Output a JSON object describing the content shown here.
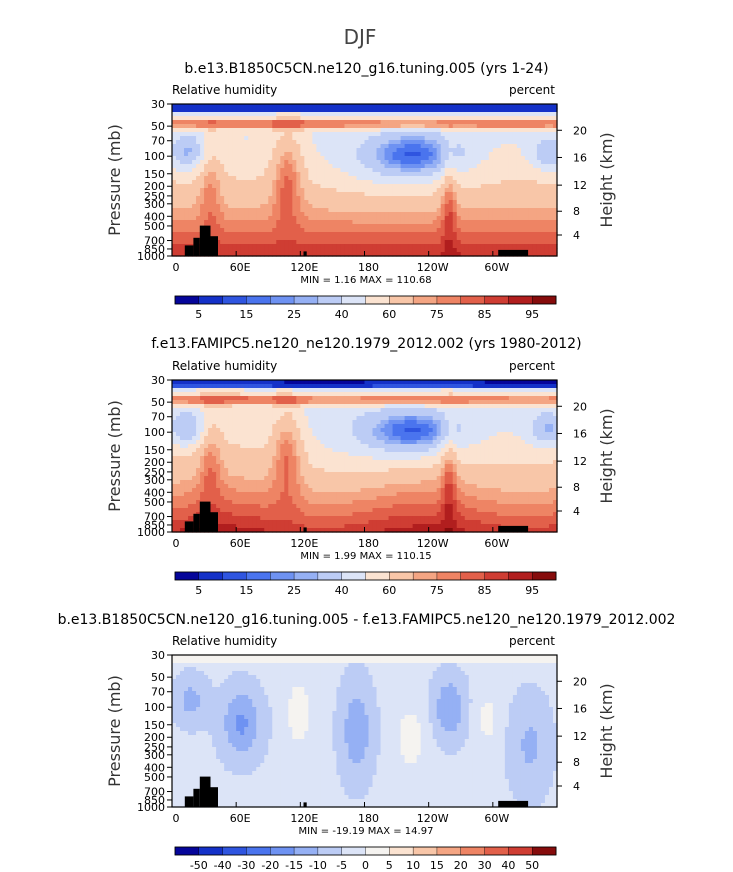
{
  "figure": {
    "supertitle": "DJF"
  },
  "chart_data": [
    {
      "type": "heatmap",
      "title": "b.e13.B1850C5CN.ne120_g16.tuning.005 (yrs 1-24)",
      "left_label": "Relative humidity",
      "right_label": "percent",
      "ylabel": "Pressure (mb)",
      "y2label": "Height (km)",
      "x_ticks": [
        "0",
        "60E",
        "120E",
        "180",
        "120W",
        "60W"
      ],
      "y_ticks": [
        "30",
        "50",
        "70",
        "100",
        "150",
        "200",
        "250",
        "300",
        "400",
        "500",
        "700",
        "850",
        "1000"
      ],
      "y2_ticks": [
        "20",
        "16",
        "12",
        "8",
        "4"
      ],
      "ylim": [
        1000,
        30
      ],
      "stats": {
        "min_label": "MIN =",
        "min": "1.16",
        "max_label": "MAX =",
        "max": "110.68"
      },
      "colorbar_labels": [
        "5",
        "15",
        "25",
        "40",
        "60",
        "75",
        "85",
        "95"
      ],
      "colorbar_colors": [
        "#05059a",
        "#1431c8",
        "#2f55e0",
        "#4a74ee",
        "#6e92f2",
        "#95b0f4",
        "#bcccf5",
        "#dce4f7",
        "#fbe3d1",
        "#f8c6a8",
        "#f4a583",
        "#ee8464",
        "#e2604a",
        "#cf3d33",
        "#b11e1e",
        "#860c0c"
      ],
      "stats_field": "full"
    },
    {
      "type": "heatmap",
      "title": "f.e13.FAMIPC5.ne120_ne120.1979_2012.002 (yrs 1980-2012)",
      "left_label": "Relative humidity",
      "right_label": "percent",
      "ylabel": "Pressure (mb)",
      "y2label": "Height (km)",
      "x_ticks": [
        "0",
        "60E",
        "120E",
        "180",
        "120W",
        "60W"
      ],
      "y_ticks": [
        "30",
        "50",
        "70",
        "100",
        "150",
        "200",
        "250",
        "300",
        "400",
        "500",
        "700",
        "850",
        "1000"
      ],
      "y2_ticks": [
        "20",
        "16",
        "12",
        "8",
        "4"
      ],
      "ylim": [
        1000,
        30
      ],
      "stats": {
        "min_label": "MIN =",
        "min": "1.99",
        "max_label": "MAX =",
        "max": "110.15"
      },
      "colorbar_labels": [
        "5",
        "15",
        "25",
        "40",
        "60",
        "75",
        "85",
        "95"
      ],
      "colorbar_colors": [
        "#05059a",
        "#1431c8",
        "#2f55e0",
        "#4a74ee",
        "#6e92f2",
        "#95b0f4",
        "#bcccf5",
        "#dce4f7",
        "#fbe3d1",
        "#f8c6a8",
        "#f4a583",
        "#ee8464",
        "#e2604a",
        "#cf3d33",
        "#b11e1e",
        "#860c0c"
      ],
      "stats_field": "full"
    },
    {
      "type": "heatmap",
      "title": "b.e13.B1850C5CN.ne120_g16.tuning.005 - f.e13.FAMIPC5.ne120_ne120.1979_2012.002",
      "left_label": "Relative humidity",
      "right_label": "percent",
      "ylabel": "Pressure (mb)",
      "y2label": "Height (km)",
      "x_ticks": [
        "0",
        "60E",
        "120E",
        "180",
        "120W",
        "60W"
      ],
      "y_ticks": [
        "30",
        "50",
        "70",
        "100",
        "150",
        "200",
        "250",
        "300",
        "400",
        "500",
        "700",
        "850",
        "1000"
      ],
      "y2_ticks": [
        "20",
        "16",
        "12",
        "8",
        "4"
      ],
      "ylim": [
        1000,
        30
      ],
      "stats": {
        "min_label": "MIN =",
        "min": "-19.19",
        "max_label": "MAX =",
        "max": "14.97"
      },
      "colorbar_labels": [
        "-50",
        "-40",
        "-30",
        "-20",
        "-15",
        "-10",
        "-5",
        "0",
        "5",
        "10",
        "15",
        "20",
        "30",
        "40",
        "50"
      ],
      "colorbar_colors": [
        "#05059a",
        "#1431c8",
        "#2f55e0",
        "#4a74ee",
        "#6e92f2",
        "#95b0f4",
        "#bcccf5",
        "#dce4f7",
        "#f5f3f0",
        "#fbe3d1",
        "#f8c6a8",
        "#f4a583",
        "#ee8464",
        "#e2604a",
        "#cf3d33",
        "#860c0c"
      ],
      "stats_field": "diff"
    }
  ]
}
